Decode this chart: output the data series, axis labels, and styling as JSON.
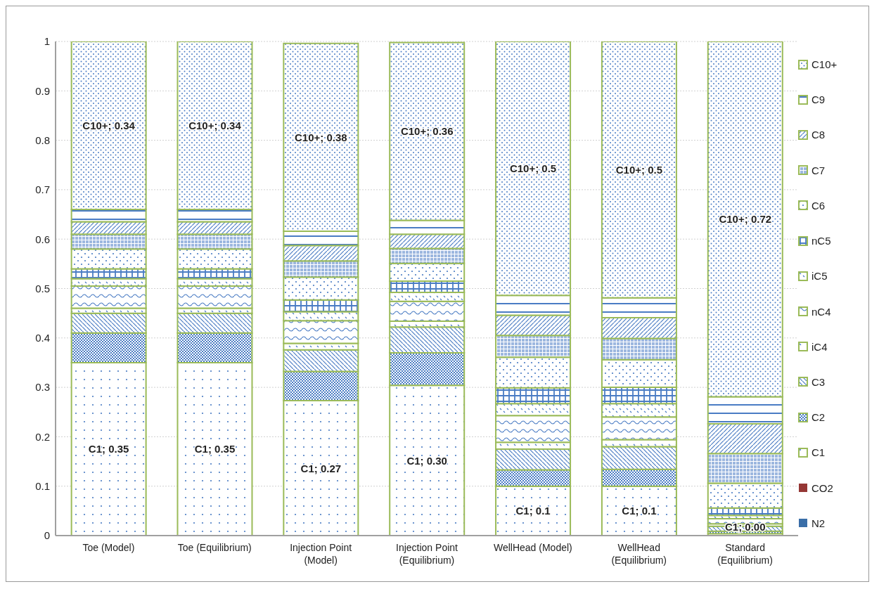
{
  "chart_data": {
    "type": "bar",
    "stacked": true,
    "categories": [
      "Toe (Model)",
      "Toe (Equilibrium)",
      "Injection Point (Model)",
      "Injection Point (Equilibrium)",
      "WellHead (Model)",
      "WellHead (Equilibrium)",
      "Standard (Equilibrium)"
    ],
    "series": [
      {
        "name": "N2",
        "color": "#3a6ea8",
        "values": [
          0,
          0,
          0,
          0,
          0,
          0,
          0
        ]
      },
      {
        "name": "CO2",
        "color": "#953735",
        "values": [
          0,
          0,
          0,
          0,
          0,
          0,
          0
        ]
      },
      {
        "name": "C1",
        "color": "#9bbb59",
        "values": [
          0.35,
          0.35,
          0.273,
          0.304,
          0.1,
          0.1,
          0.004
        ],
        "value_labels": [
          "C1; 0.35",
          "C1; 0.35",
          "C1; 0.27",
          "C1; 0.30",
          "C1; 0.1",
          "C1; 0.1",
          "C1; 0.00"
        ]
      },
      {
        "name": "C2",
        "color": "#9bbb59",
        "values": [
          0.06,
          0.06,
          0.059,
          0.066,
          0.033,
          0.034,
          0.005
        ]
      },
      {
        "name": "C3",
        "color": "#9bbb59",
        "values": [
          0.04,
          0.04,
          0.044,
          0.052,
          0.042,
          0.046,
          0.01
        ]
      },
      {
        "name": "iC4",
        "color": "#9bbb59",
        "values": [
          0.01,
          0.01,
          0.013,
          0.012,
          0.014,
          0.014,
          0.005
        ]
      },
      {
        "name": "nC4",
        "color": "#9bbb59",
        "values": [
          0.045,
          0.045,
          0.046,
          0.04,
          0.054,
          0.046,
          0.01
        ]
      },
      {
        "name": "iC5",
        "color": "#9bbb59",
        "values": [
          0.015,
          0.015,
          0.018,
          0.018,
          0.024,
          0.027,
          0.007
        ]
      },
      {
        "name": "nC5",
        "color": "#9bbb59",
        "values": [
          0.02,
          0.02,
          0.024,
          0.023,
          0.032,
          0.033,
          0.015
        ]
      },
      {
        "name": "C6",
        "color": "#9bbb59",
        "values": [
          0.04,
          0.04,
          0.046,
          0.036,
          0.062,
          0.056,
          0.05
        ]
      },
      {
        "name": "C7",
        "color": "#9bbb59",
        "values": [
          0.03,
          0.03,
          0.033,
          0.03,
          0.044,
          0.043,
          0.06
        ]
      },
      {
        "name": "C8",
        "color": "#9bbb59",
        "values": [
          0.025,
          0.025,
          0.031,
          0.029,
          0.041,
          0.042,
          0.06
        ]
      },
      {
        "name": "C9",
        "color": "#9bbb59",
        "values": [
          0.025,
          0.025,
          0.029,
          0.028,
          0.04,
          0.04,
          0.055
        ]
      },
      {
        "name": "C10+",
        "color": "#9bbb59",
        "values": [
          0.34,
          0.34,
          0.38,
          0.36,
          0.514,
          0.519,
          0.72
        ],
        "value_labels": [
          "C10+; 0.34",
          "C10+; 0.34",
          "C10+; 0.38",
          "C10+; 0.36",
          "C10+; 0.5",
          "C10+; 0.5",
          "C10+; 0.72"
        ]
      }
    ],
    "ylim": [
      0,
      1
    ],
    "yticks": [
      0,
      0.1,
      0.2,
      0.3,
      0.4,
      0.5,
      0.6,
      0.7,
      0.8,
      0.9,
      1
    ],
    "grid": "y",
    "legend": "right"
  }
}
